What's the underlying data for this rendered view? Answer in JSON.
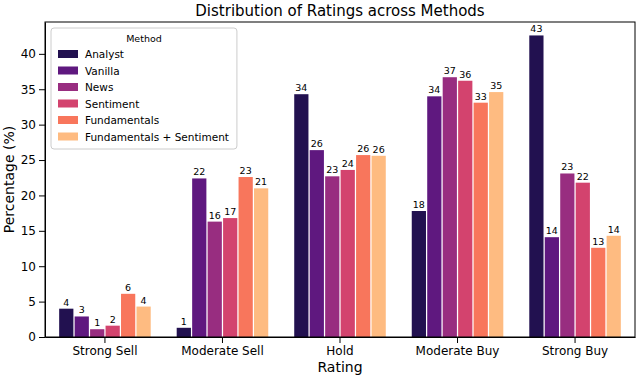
{
  "chart_data": {
    "type": "bar",
    "title": "Distribution of Ratings across Methods",
    "x_label": "Rating",
    "y_label": "Percentage (%)",
    "legend_title": "Method",
    "legend": "upper left",
    "categories": [
      "Strong Sell",
      "Moderate Sell",
      "Hold",
      "Moderate Buy",
      "Strong Buy"
    ],
    "series": [
      {
        "name": "Analyst",
        "color": "#221150",
        "values": [
          4.0,
          1.3,
          34.3,
          17.8,
          42.6
        ],
        "value_labels": [
          "4",
          "1",
          "34",
          "18",
          "43"
        ]
      },
      {
        "name": "Vanilla",
        "color": "#5f187f",
        "values": [
          2.9,
          22.4,
          26.4,
          34.0,
          14.1
        ],
        "value_labels": [
          "3",
          "22",
          "26",
          "34",
          "14"
        ]
      },
      {
        "name": "News",
        "color": "#982d80",
        "values": [
          1.1,
          16.3,
          22.7,
          36.7,
          23.1
        ],
        "value_labels": [
          "1",
          "16",
          "23",
          "37",
          "23"
        ]
      },
      {
        "name": "Sentiment",
        "color": "#d3436e",
        "values": [
          1.6,
          16.8,
          23.6,
          36.2,
          21.8
        ],
        "value_labels": [
          "2",
          "17",
          "24",
          "36",
          "22"
        ]
      },
      {
        "name": "Fundamentals",
        "color": "#f8765c",
        "values": [
          6.1,
          22.6,
          25.7,
          33.1,
          12.6
        ],
        "value_labels": [
          "6",
          "23",
          "26",
          "33",
          "13"
        ]
      },
      {
        "name": "Fundamentals + Sentiment",
        "color": "#febb81",
        "values": [
          4.3,
          21.0,
          25.6,
          34.6,
          14.3
        ],
        "value_labels": [
          "4",
          "21",
          "26",
          "35",
          "14"
        ]
      }
    ],
    "ylim": [
      0,
      44.5
    ],
    "yticks": [
      0,
      5,
      10,
      15,
      20,
      25,
      30,
      35,
      40
    ],
    "grid": false,
    "data_labels": true
  }
}
